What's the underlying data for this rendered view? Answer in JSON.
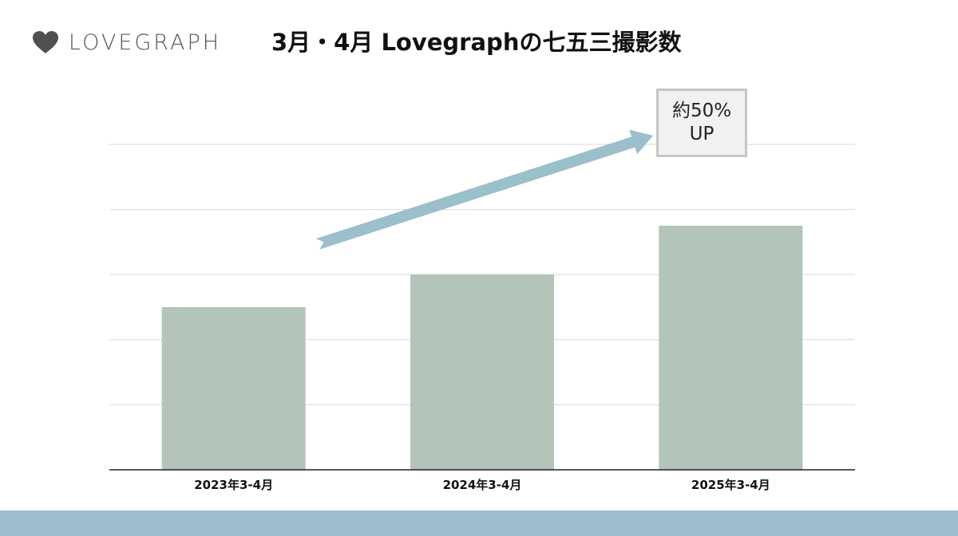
{
  "brand": {
    "name": "LOVEGRAPH",
    "logo_icon": "heart-icon",
    "color": "#505050"
  },
  "title": "3月・4月 Lovegraphの七五三撮影数",
  "callout": {
    "line1": "約50%",
    "line2": "UP"
  },
  "colors": {
    "bar": "#b2c5b8",
    "arrow": "#9bbfcb",
    "footer": "#9dbfcb",
    "grid": "#d9d9d9",
    "axis": "#222222"
  },
  "chart_data": {
    "type": "bar",
    "categories": [
      "2023年3-4月",
      "2024年3-4月",
      "2025年3-4月"
    ],
    "values": [
      100,
      120,
      150
    ],
    "xlabel": "",
    "ylabel": "",
    "ylim": [
      0,
      200
    ],
    "gridlines": 5,
    "grid": true,
    "y_tick_labels_shown": false,
    "annotation": "約50% UP"
  }
}
